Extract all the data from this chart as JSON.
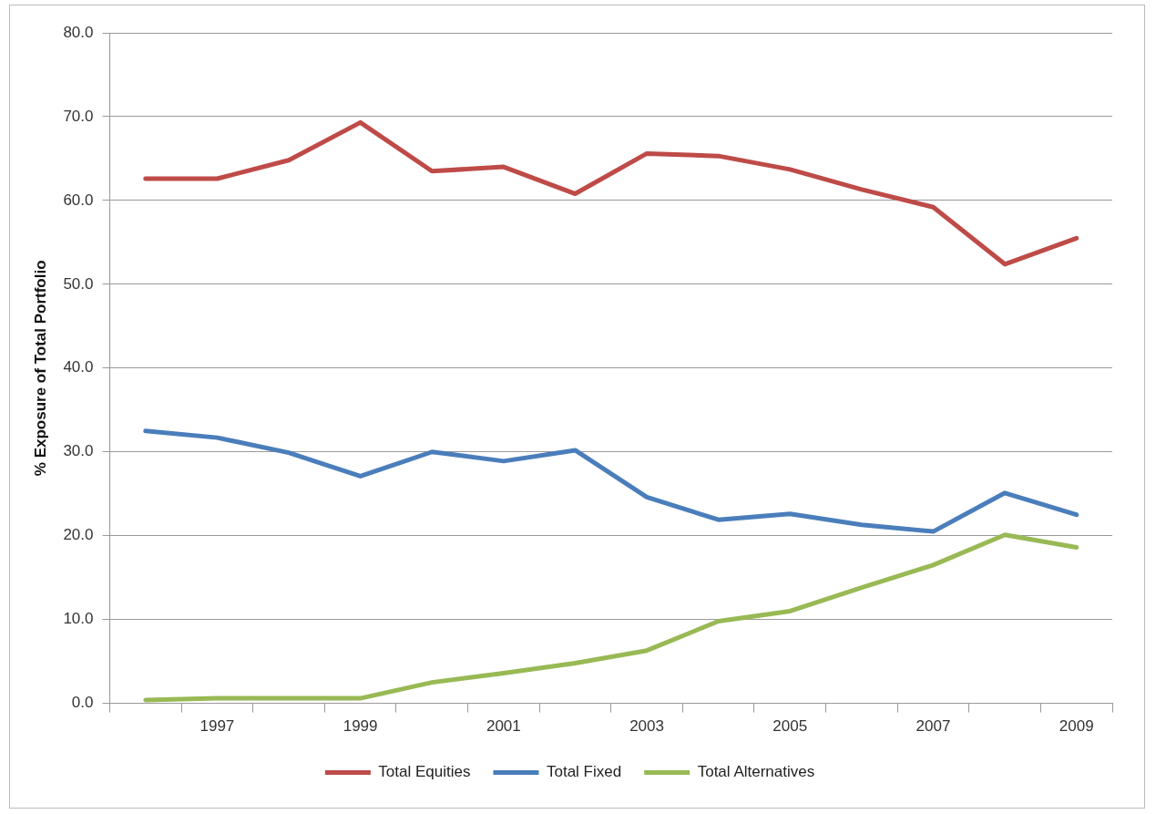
{
  "chart_data": {
    "type": "line",
    "ylabel": "% Exposure of Total Portfolio",
    "categories": [
      null,
      "1997",
      null,
      "1999",
      null,
      "2001",
      null,
      "2003",
      null,
      "2005",
      null,
      "2007",
      null,
      "2009"
    ],
    "series": [
      {
        "name": "Total Equities",
        "color": "#be4b48",
        "values": [
          62.6,
          62.6,
          64.8,
          69.3,
          63.5,
          64.0,
          60.8,
          65.6,
          65.3,
          63.7,
          61.3,
          59.2,
          52.4,
          55.5
        ]
      },
      {
        "name": "Total Fixed",
        "color": "#4a7ebb",
        "values": [
          32.5,
          31.7,
          29.9,
          27.1,
          30.0,
          28.9,
          30.2,
          24.6,
          21.9,
          22.6,
          21.3,
          20.5,
          25.1,
          22.5
        ]
      },
      {
        "name": "Total Alternatives",
        "color": "#98b954",
        "values": [
          0.4,
          0.6,
          0.6,
          0.6,
          2.5,
          3.6,
          4.8,
          6.3,
          9.8,
          11.0,
          13.8,
          16.5,
          20.1,
          18.6
        ]
      }
    ],
    "ylim": [
      0,
      80
    ],
    "yticks": [
      {
        "value": 0,
        "label": "0.0"
      },
      {
        "value": 10,
        "label": "10.0"
      },
      {
        "value": 20,
        "label": "20.0"
      },
      {
        "value": 30,
        "label": "30.0"
      },
      {
        "value": 40,
        "label": "40.0"
      },
      {
        "value": 50,
        "label": "50.0"
      },
      {
        "value": 60,
        "label": "60.0"
      },
      {
        "value": 70,
        "label": "70.0"
      },
      {
        "value": 80,
        "label": "80.0"
      }
    ],
    "grid": "y",
    "legend": "bottom",
    "marker": "none",
    "line_style": "solid"
  }
}
